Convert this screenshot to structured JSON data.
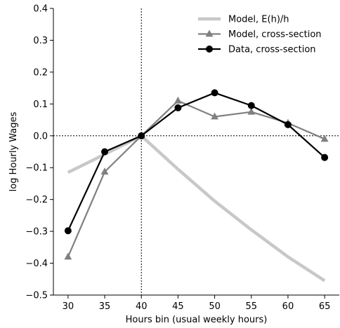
{
  "chart_data": {
    "type": "line",
    "xlabel": "Hours bin (usual weekly hours)",
    "ylabel": "log Hourly Wages",
    "xlim": [
      28,
      67
    ],
    "ylim": [
      -0.5,
      0.4
    ],
    "x_ticks": [
      30,
      35,
      40,
      45,
      50,
      55,
      60,
      65
    ],
    "y_ticks": [
      -0.5,
      -0.4,
      -0.3,
      -0.2,
      -0.1,
      0.0,
      0.1,
      0.2,
      0.3,
      0.4
    ],
    "y_tick_labels": [
      "−0.5",
      "−0.4",
      "−0.3",
      "−0.2",
      "−0.1",
      "0.0",
      "0.1",
      "0.2",
      "0.3",
      "0.4"
    ],
    "reference_lines": {
      "vertical_x": 40,
      "horizontal_y": 0.0,
      "style": "dotted"
    },
    "legend_position": "top-right",
    "series": [
      {
        "name": "Model, E(h)/h",
        "color": "#c8c8c8",
        "marker": "none",
        "x": [
          30,
          35,
          40,
          45,
          50,
          55,
          60,
          65
        ],
        "y": [
          -0.115,
          -0.058,
          0.0,
          -0.105,
          -0.205,
          -0.295,
          -0.38,
          -0.455
        ]
      },
      {
        "name": "Model, cross-section",
        "color": "#808080",
        "marker": "triangle",
        "x": [
          30,
          35,
          40,
          45,
          50,
          55,
          60,
          65
        ],
        "y": [
          -0.38,
          -0.113,
          0.0,
          0.11,
          0.06,
          0.075,
          0.04,
          -0.01
        ]
      },
      {
        "name": "Data, cross-section",
        "color": "#000000",
        "marker": "circle",
        "x": [
          30,
          35,
          40,
          45,
          50,
          55,
          60,
          65
        ],
        "y": [
          -0.298,
          -0.05,
          0.0,
          0.088,
          0.135,
          0.095,
          0.035,
          -0.068
        ]
      }
    ]
  }
}
